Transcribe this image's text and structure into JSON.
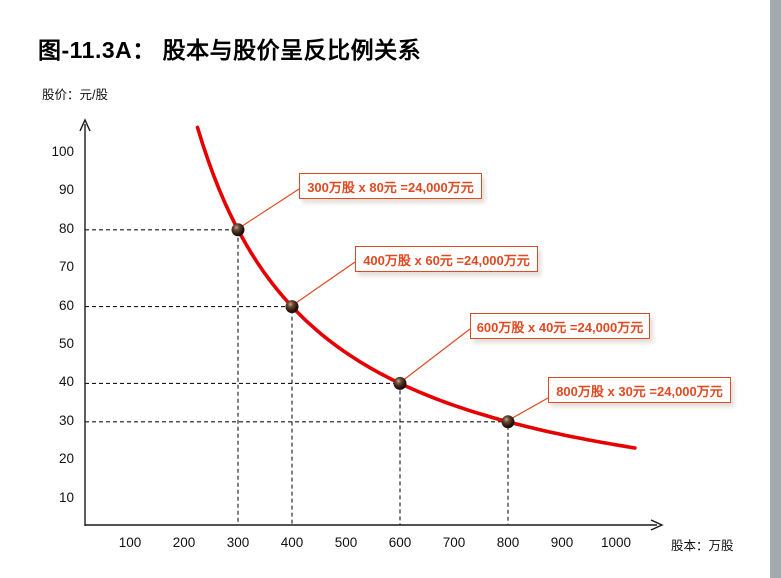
{
  "slide": {
    "title": "图-11.3A： 股本与股价呈反比例关系",
    "background_color": "#ffffff",
    "window_edge_color": "#a4a9af"
  },
  "chart_data": {
    "type": "line",
    "title": "股本与股价呈反比例关系",
    "xlabel": "股本：万股",
    "ylabel": "股价：元/股",
    "x_ticks": [
      "100",
      "200",
      "300",
      "400",
      "500",
      "600",
      "700",
      "800",
      "900",
      "1000"
    ],
    "y_ticks": [
      "100",
      "90",
      "80",
      "70",
      "60",
      "50",
      "40",
      "30",
      "20",
      "10"
    ],
    "xlim": [
      0,
      1050
    ],
    "ylim": [
      0,
      105
    ],
    "grid": "dashed guide lines from both axes to each data point",
    "legend": null,
    "curve": {
      "shape": "hyperbola",
      "equation": "股价 = 24000 / 股本",
      "constant_product": 24000,
      "x_start": 225,
      "x_end": 1035,
      "color": "#e60000"
    },
    "points": [
      {
        "x": 300,
        "y": 80
      },
      {
        "x": 400,
        "y": 60
      },
      {
        "x": 600,
        "y": 40
      },
      {
        "x": 800,
        "y": 30
      }
    ],
    "point_color": "#2b170d",
    "annotation_color": "#e04a22",
    "annotations": [
      {
        "label": "300万股 x 80元 =24,000万元",
        "x": 300,
        "y": 80
      },
      {
        "label": "400万股 x 60元 =24,000万元",
        "x": 400,
        "y": 60
      },
      {
        "label": "600万股 x 40元 =24,000万元",
        "x": 600,
        "y": 40
      },
      {
        "label": "800万股 x 30元 =24,000万元",
        "x": 800,
        "y": 30
      }
    ]
  }
}
